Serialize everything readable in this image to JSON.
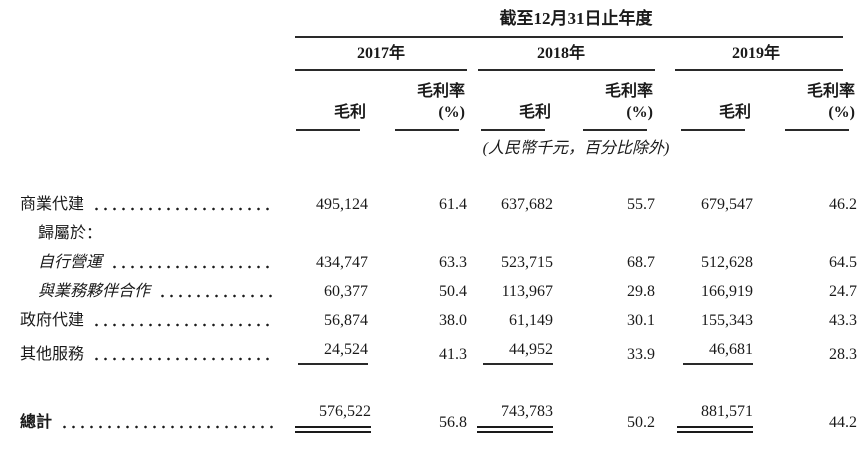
{
  "table": {
    "title": "截至12月31日止年度",
    "unit_note": "(人民幣千元，百分比除外)",
    "years": [
      "2017年",
      "2018年",
      "2019年"
    ],
    "col_headers": {
      "gross_profit": "毛利",
      "gross_margin_line1": "毛利率",
      "gross_margin_line2": "(%)"
    },
    "rows": [
      {
        "label": "商業代建",
        "values": [
          "495,124",
          "61.4",
          "637,682",
          "55.7",
          "679,547",
          "46.2"
        ]
      },
      {
        "label": "歸屬於：",
        "values": [
          "",
          "",
          "",
          "",
          "",
          ""
        ]
      },
      {
        "label": "自行營運",
        "values": [
          "434,747",
          "63.3",
          "523,715",
          "68.7",
          "512,628",
          "64.5"
        ]
      },
      {
        "label": "與業務夥伴合作",
        "values": [
          "60,377",
          "50.4",
          "113,967",
          "29.8",
          "166,919",
          "24.7"
        ]
      },
      {
        "label": "政府代建",
        "values": [
          "56,874",
          "38.0",
          "61,149",
          "30.1",
          "155,343",
          "43.3"
        ]
      },
      {
        "label": "其他服務",
        "values": [
          "24,524",
          "41.3",
          "44,952",
          "33.9",
          "46,681",
          "28.3"
        ]
      },
      {
        "label": "總計",
        "values": [
          "576,522",
          "56.8",
          "743,783",
          "50.2",
          "881,571",
          "44.2"
        ]
      }
    ]
  }
}
